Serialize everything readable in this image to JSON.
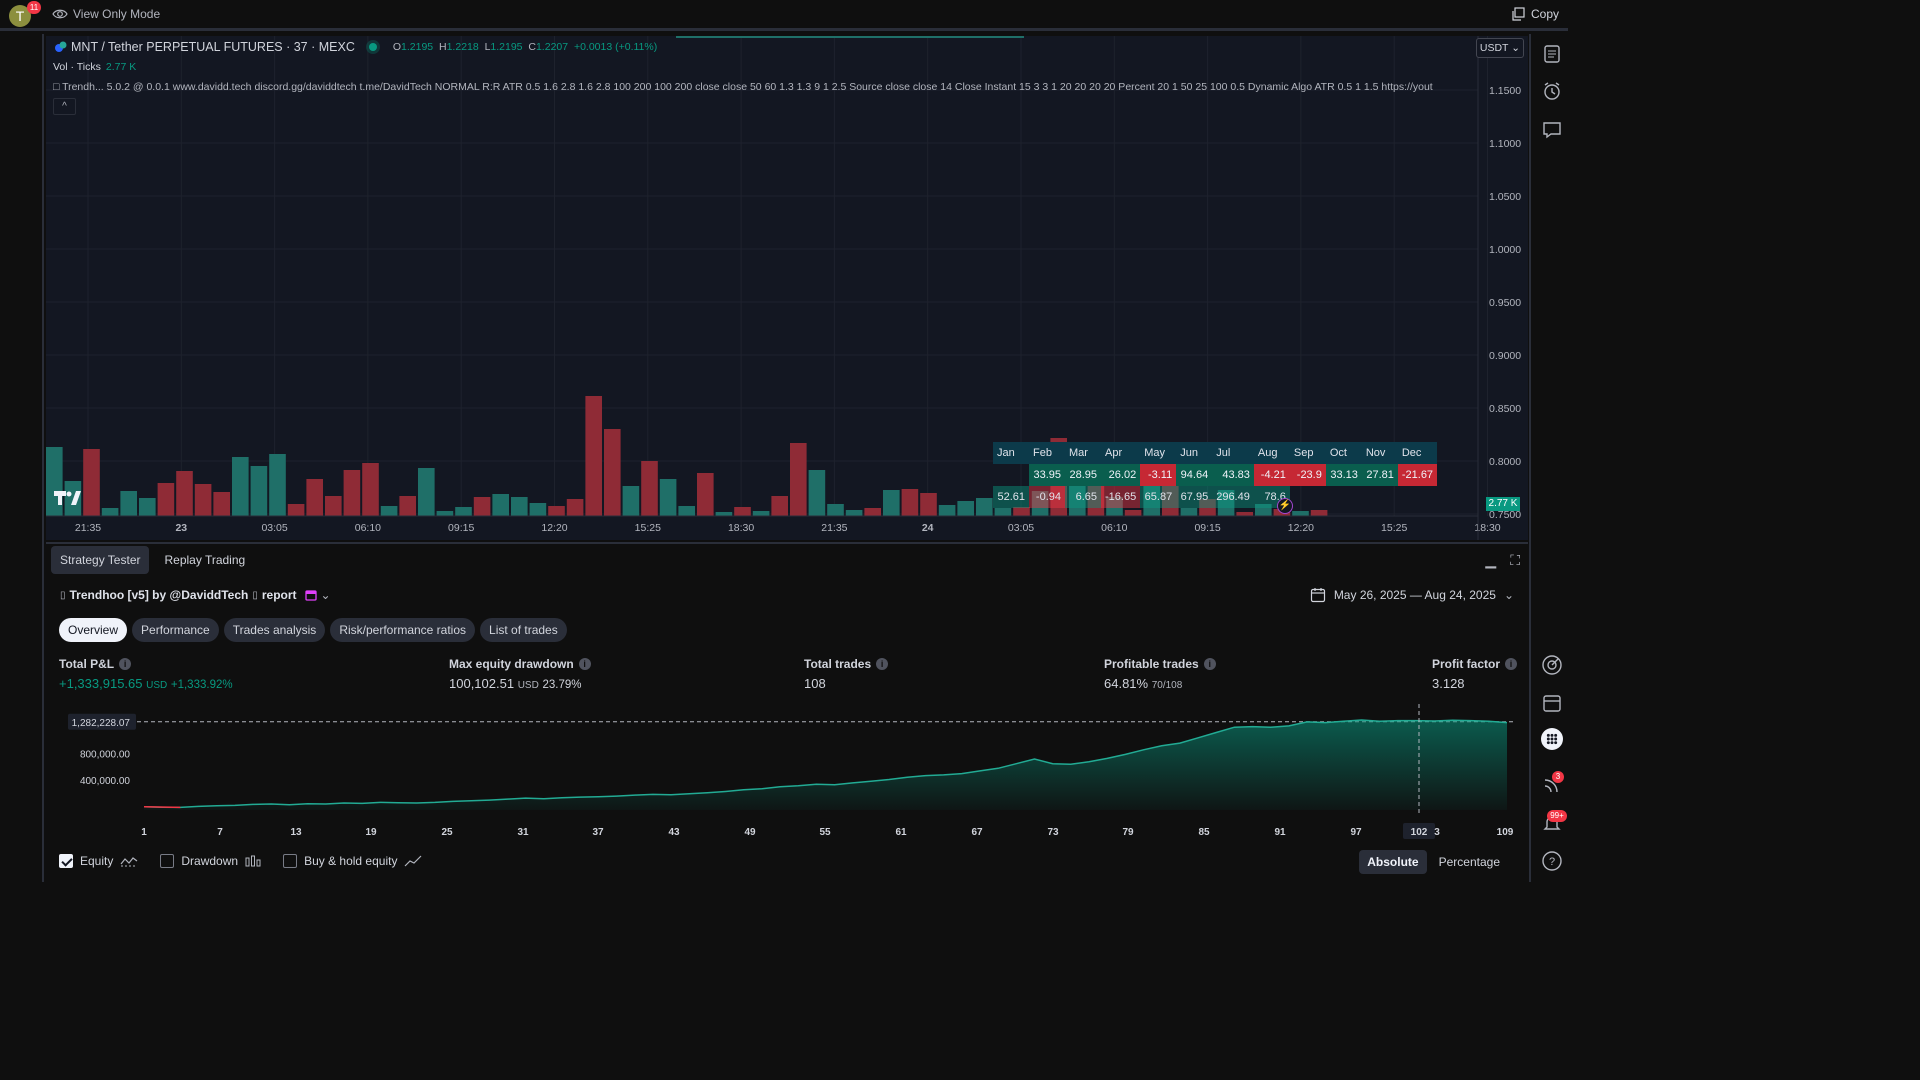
{
  "topbar": {
    "avatar_letter": "T",
    "avatar_badge": "11",
    "view_mode": "View Only Mode",
    "copy": "Copy"
  },
  "chart": {
    "symbol": "MNT / Tether PERPETUAL FUTURES · 37 · MEXC",
    "ohlc": {
      "o_label": "O",
      "o": "1.2195",
      "h_label": "H",
      "h": "1.2218",
      "l_label": "L",
      "l": "1.2195",
      "c_label": "C",
      "c": "1.2207",
      "change": "+0.0013 (+0.11%)"
    },
    "vol_label": "Vol · Ticks",
    "vol_value": "2.77 K",
    "indicator_text": "□ Trendh...  5.0.2 @ 0.0.1 www.davidd.tech discord.gg/daviddtech t.me/DavidTech NORMAL R:R ATR 0.5 1.6 2.8 1.6 2.8 100 200 100 200 close close 50 60 1.3 1.3 9 1 2.5 Source close close 14 Close Instant 15 3 3 1 20 20 20 20 Percent 20 1 50 25 100 0.5 Dynamic Algo ATR 0.5 1 1.5 https://yout",
    "collapse": "^",
    "currency": "USDT",
    "vol_tag": "2.77 K",
    "price_axis": [
      "1.1500",
      "1.1000",
      "1.0500",
      "1.0000",
      "0.9500",
      "0.9000",
      "0.8500",
      "0.8000",
      "0.7500"
    ],
    "time_axis": [
      {
        "t": "21:35",
        "bold": false
      },
      {
        "t": "23",
        "bold": true
      },
      {
        "t": "03:05",
        "bold": false
      },
      {
        "t": "06:10",
        "bold": false
      },
      {
        "t": "09:15",
        "bold": false
      },
      {
        "t": "12:20",
        "bold": false
      },
      {
        "t": "15:25",
        "bold": false
      },
      {
        "t": "18:30",
        "bold": false
      },
      {
        "t": "21:35",
        "bold": false
      },
      {
        "t": "24",
        "bold": true
      },
      {
        "t": "03:05",
        "bold": false
      },
      {
        "t": "06:10",
        "bold": false
      },
      {
        "t": "09:15",
        "bold": false
      },
      {
        "t": "12:20",
        "bold": false
      },
      {
        "t": "15:25",
        "bold": false
      },
      {
        "t": "18:30",
        "bold": false
      }
    ],
    "volume_bars": [
      {
        "v": 69,
        "up": true
      },
      {
        "v": 35,
        "up": true
      },
      {
        "v": 67,
        "up": false
      },
      {
        "v": 8,
        "up": true
      },
      {
        "v": 25,
        "up": true
      },
      {
        "v": 18,
        "up": true
      },
      {
        "v": 33,
        "up": false
      },
      {
        "v": 45,
        "up": false
      },
      {
        "v": 32,
        "up": false
      },
      {
        "v": 24,
        "up": false
      },
      {
        "v": 59,
        "up": true
      },
      {
        "v": 50,
        "up": true
      },
      {
        "v": 62,
        "up": true
      },
      {
        "v": 12,
        "up": false
      },
      {
        "v": 37,
        "up": false
      },
      {
        "v": 20,
        "up": false
      },
      {
        "v": 46,
        "up": false
      },
      {
        "v": 53,
        "up": false
      },
      {
        "v": 10,
        "up": true
      },
      {
        "v": 20,
        "up": false
      },
      {
        "v": 48,
        "up": true
      },
      {
        "v": 5,
        "up": true
      },
      {
        "v": 9,
        "up": true
      },
      {
        "v": 19,
        "up": false
      },
      {
        "v": 22,
        "up": true
      },
      {
        "v": 19,
        "up": true
      },
      {
        "v": 13,
        "up": true
      },
      {
        "v": 10,
        "up": false
      },
      {
        "v": 17,
        "up": false
      },
      {
        "v": 120,
        "up": false
      },
      {
        "v": 87,
        "up": false
      },
      {
        "v": 30,
        "up": true
      },
      {
        "v": 55,
        "up": false
      },
      {
        "v": 37,
        "up": true
      },
      {
        "v": 10,
        "up": true
      },
      {
        "v": 43,
        "up": false
      },
      {
        "v": 4,
        "up": true
      },
      {
        "v": 9,
        "up": false
      },
      {
        "v": 5,
        "up": true
      },
      {
        "v": 20,
        "up": false
      },
      {
        "v": 73,
        "up": false
      },
      {
        "v": 46,
        "up": true
      },
      {
        "v": 12,
        "up": true
      },
      {
        "v": 6,
        "up": true
      },
      {
        "v": 8,
        "up": false
      },
      {
        "v": 26,
        "up": true
      },
      {
        "v": 27,
        "up": false
      },
      {
        "v": 23,
        "up": false
      },
      {
        "v": 11,
        "up": true
      },
      {
        "v": 15,
        "up": true
      },
      {
        "v": 18,
        "up": true
      },
      {
        "v": 8,
        "up": true
      },
      {
        "v": 9,
        "up": false
      },
      {
        "v": 25,
        "up": true
      },
      {
        "v": 78,
        "up": false
      },
      {
        "v": 34,
        "up": true
      },
      {
        "v": 45,
        "up": false
      },
      {
        "v": 19,
        "up": true
      },
      {
        "v": 6,
        "up": false
      },
      {
        "v": 40,
        "up": true
      },
      {
        "v": 33,
        "up": false
      },
      {
        "v": 8,
        "up": true
      },
      {
        "v": 17,
        "up": false
      },
      {
        "v": 26,
        "up": true
      },
      {
        "v": 4,
        "up": false
      },
      {
        "v": 12,
        "up": true
      },
      {
        "v": 7,
        "up": false
      },
      {
        "v": 5,
        "up": true
      },
      {
        "v": 6,
        "up": false
      }
    ],
    "monthly_table": {
      "months": [
        "Jan",
        "Feb",
        "Mar",
        "Apr",
        "May",
        "Jun",
        "Jul",
        "Aug",
        "Sep",
        "Oct",
        "Nov",
        "Dec"
      ],
      "rows": [
        [
          "",
          "33.95",
          "28.95",
          "26.02",
          "-3.11",
          "94.64",
          "43.83",
          "-4.21",
          "-23.9",
          "33.13",
          "27.81",
          "-21.67"
        ],
        [
          "52.61",
          "-0.94",
          "6.65",
          "-16.65",
          "65.87",
          "67.95",
          "296.49",
          "78.6",
          "",
          "",
          "",
          ""
        ]
      ]
    }
  },
  "panel": {
    "tabs": [
      "Strategy Tester",
      "Replay Trading"
    ],
    "strategy_title": "Trendhoo [v5] by @DaviddTech",
    "report_label": "report",
    "date_range": "May 26, 2025 — Aug 24, 2025",
    "report_tabs": [
      "Overview",
      "Performance",
      "Trades analysis",
      "Risk/performance ratios",
      "List of trades"
    ],
    "metrics": {
      "total_pnl": {
        "label": "Total P&L",
        "value": "+1,333,915.65",
        "unit": "USD",
        "pct": "+1,333.92%"
      },
      "max_dd": {
        "label": "Max equity drawdown",
        "value": "100,102.51",
        "unit": "USD",
        "pct": "23.79%"
      },
      "total_trades": {
        "label": "Total trades",
        "value": "108"
      },
      "profitable": {
        "label": "Profitable trades",
        "value": "64.81%",
        "sub": "70/108"
      },
      "profit_factor": {
        "label": "Profit factor",
        "value": "3.128"
      }
    },
    "equity_y_labels": [
      "1,282,228.07",
      "800,000.00",
      "400,000.00"
    ],
    "equity_x_labels": [
      "1",
      "7",
      "13",
      "19",
      "25",
      "31",
      "37",
      "43",
      "49",
      "55",
      "61",
      "67",
      "73",
      "79",
      "85",
      "91",
      "97",
      "102",
      "3",
      "109"
    ],
    "equity_series": [
      0,
      -8000,
      -10000,
      5000,
      15000,
      20000,
      35000,
      40000,
      30000,
      45000,
      40000,
      55000,
      50000,
      65000,
      60000,
      55000,
      65000,
      80000,
      90000,
      100000,
      115000,
      130000,
      120000,
      135000,
      145000,
      150000,
      160000,
      175000,
      185000,
      180000,
      195000,
      210000,
      230000,
      255000,
      270000,
      300000,
      315000,
      340000,
      330000,
      360000,
      385000,
      410000,
      445000,
      470000,
      480000,
      500000,
      540000,
      580000,
      650000,
      720000,
      650000,
      640000,
      680000,
      730000,
      790000,
      860000,
      920000,
      960000,
      1040000,
      1120000,
      1200000,
      1210000,
      1200000,
      1220000,
      1280000,
      1270000,
      1290000,
      1310000,
      1290000,
      1300000,
      1300000,
      1295000,
      1305000,
      1300000,
      1290000,
      1270000
    ],
    "legend": {
      "equity": "Equity",
      "drawdown": "Drawdown",
      "buy_hold": "Buy & hold equity"
    },
    "mode": {
      "absolute": "Absolute",
      "percentage": "Percentage"
    }
  },
  "right_rail": {
    "badge_signals": "3",
    "badge_alerts": "99+"
  },
  "colors": {
    "up": "#089981",
    "down": "#f23645",
    "bg": "#131722",
    "accent": "#2962ff"
  }
}
